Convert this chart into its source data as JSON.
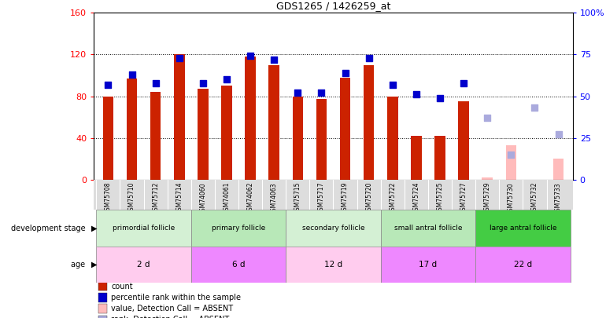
{
  "title": "GDS1265 / 1426259_at",
  "samples": [
    "GSM75708",
    "GSM75710",
    "GSM75712",
    "GSM75714",
    "GSM74060",
    "GSM74061",
    "GSM74062",
    "GSM74063",
    "GSM75715",
    "GSM75717",
    "GSM75719",
    "GSM75720",
    "GSM75722",
    "GSM75724",
    "GSM75725",
    "GSM75727",
    "GSM75729",
    "GSM75730",
    "GSM75732",
    "GSM75733"
  ],
  "count_values": [
    80,
    97,
    84,
    120,
    87,
    90,
    118,
    110,
    80,
    77,
    98,
    110,
    80,
    42,
    42,
    75,
    null,
    null,
    null,
    null
  ],
  "count_absent": [
    null,
    null,
    null,
    null,
    null,
    null,
    null,
    null,
    null,
    null,
    null,
    null,
    null,
    null,
    null,
    null,
    2,
    33,
    null,
    20
  ],
  "percentile_values": [
    57,
    63,
    58,
    73,
    58,
    60,
    74,
    72,
    52,
    52,
    64,
    73,
    57,
    51,
    49,
    58,
    null,
    null,
    null,
    null
  ],
  "percentile_absent": [
    null,
    null,
    null,
    null,
    null,
    null,
    null,
    null,
    null,
    null,
    null,
    null,
    null,
    null,
    null,
    null,
    37,
    15,
    43,
    27
  ],
  "left_ylim": [
    0,
    160
  ],
  "right_ylim": [
    0,
    100
  ],
  "left_yticks": [
    0,
    40,
    80,
    120,
    160
  ],
  "right_yticklabels": [
    "0",
    "25",
    "50",
    "75",
    "100%"
  ],
  "groups": [
    {
      "label": "primordial follicle",
      "color": "#d4f0d4",
      "start": 0,
      "end": 3
    },
    {
      "label": "primary follicle",
      "color": "#b8e8b8",
      "start": 4,
      "end": 7
    },
    {
      "label": "secondary follicle",
      "color": "#d4f0d4",
      "start": 8,
      "end": 11
    },
    {
      "label": "small antral follicle",
      "color": "#b8e8b8",
      "start": 12,
      "end": 15
    },
    {
      "label": "large antral follicle",
      "color": "#44cc44",
      "start": 16,
      "end": 19
    }
  ],
  "ages": [
    {
      "label": "2 d",
      "color": "#ffccee",
      "start": 0,
      "end": 3
    },
    {
      "label": "6 d",
      "color": "#ee88ff",
      "start": 4,
      "end": 7
    },
    {
      "label": "12 d",
      "color": "#ffccee",
      "start": 8,
      "end": 11
    },
    {
      "label": "17 d",
      "color": "#ee88ff",
      "start": 12,
      "end": 15
    },
    {
      "label": "22 d",
      "color": "#ee88ff",
      "start": 16,
      "end": 19
    }
  ],
  "bar_color_present": "#cc2200",
  "bar_color_absent": "#ffbbbb",
  "dot_color_present": "#0000cc",
  "dot_color_absent": "#aaaadd",
  "bar_width": 0.45,
  "legend_items": [
    {
      "label": "count",
      "color": "#cc2200"
    },
    {
      "label": "percentile rank within the sample",
      "color": "#0000cc"
    },
    {
      "label": "value, Detection Call = ABSENT",
      "color": "#ffbbbb"
    },
    {
      "label": "rank, Detection Call = ABSENT",
      "color": "#aaaadd"
    }
  ]
}
